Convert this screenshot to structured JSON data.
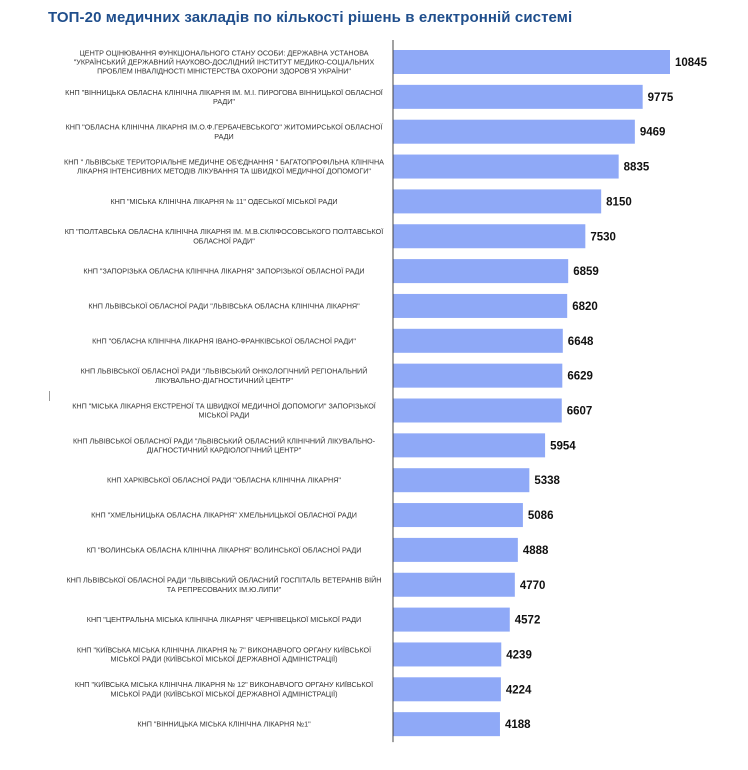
{
  "chart_data": {
    "type": "bar",
    "orientation": "horizontal",
    "title": "ТОП-20 медичних закладів по кількості рішень в електронній системі",
    "xlabel": "",
    "ylabel": "",
    "xlim": [
      0,
      10845
    ],
    "grid": false,
    "colors": {
      "bar": "#8fa9f7",
      "title": "#1f4e8c",
      "axis": "#444444"
    },
    "categories": [
      [
        "ЦЕНТР ОЦІНЮВАННЯ ФУНКЦІОНАЛЬНОГО СТАНУ ОСОБИ: ДЕРЖАВНА УСТАНОВА",
        "\"УКРАЇНСЬКИЙ ДЕРЖАВНИЙ НАУКОВО-ДОСЛІДНИЙ ІНСТИТУТ МЕДИКО-СОЦІАЛЬНИХ",
        "ПРОБЛЕМ ІНВАЛІДНОСТІ МІНІСТЕРСТВА ОХОРОНИ ЗДОРОВ'Я УКРАЇНИ\""
      ],
      [
        "КНП \"ВІННИЦЬКА ОБЛАСНА КЛІНІЧНА ЛІКАРНЯ ІМ. М.І. ПИРОГОВА ВІННИЦЬКОЇ ОБЛАСНОЇ",
        "РАДИ\""
      ],
      [
        "КНП \"ОБЛАСНА КЛІНІЧНА ЛІКАРНЯ ІМ.О.Ф.ГЕРБАЧЕВСЬКОГО\" ЖИТОМИРСЬКОЇ ОБЛАСНОЇ",
        "РАДИ"
      ],
      [
        "КНП \" ЛЬВІВСЬКЕ ТЕРИТОРІАЛЬНЕ МЕДИЧНЕ ОБ'ЄДНАННЯ \" БАГАТОПРОФІЛЬНА КЛІНІЧНА",
        "ЛІКАРНЯ ІНТЕНСИВНИХ МЕТОДІВ ЛІКУВАННЯ ТА ШВИДКОЇ МЕДИЧНОЇ ДОПОМОГИ\""
      ],
      [
        "КНП \"МІСЬКА КЛІНІЧНА ЛІКАРНЯ № 11\" ОДЕСЬКОЇ МІСЬКОЇ РАДИ"
      ],
      [
        "КП \"ПОЛТАВСЬКА ОБЛАСНА КЛІНІЧНА ЛІКАРНЯ ІМ. М.В.СКЛІФОСОВСЬКОГО ПОЛТАВСЬКОЇ",
        "ОБЛАСНОЇ РАДИ\""
      ],
      [
        "КНП \"ЗАПОРІЗЬКА ОБЛАСНА КЛІНІЧНА ЛІКАРНЯ\" ЗАПОРІЗЬКОЇ ОБЛАСНОЇ РАДИ"
      ],
      [
        "КНП ЛЬВІВСЬКОЇ ОБЛАСНОЇ РАДИ \"ЛЬВІВСЬКА ОБЛАСНА КЛІНІЧНА ЛІКАРНЯ\""
      ],
      [
        "КНП \"ОБЛАСНА КЛІНІЧНА ЛІКАРНЯ ІВАНО-ФРАНКІВСЬКОЇ ОБЛАСНОЇ РАДИ\""
      ],
      [
        "КНП ЛЬВІВСЬКОЇ ОБЛАСНОЇ РАДИ \"ЛЬВІВСЬКИЙ ОНКОЛОГІЧНИЙ РЕГІОНАЛЬНИЙ",
        "ЛІКУВАЛЬНО-ДІАГНОСТИЧНИЙ ЦЕНТР\""
      ],
      [
        "КНП \"МІСЬКА ЛІКАРНЯ ЕКСТРЕНОЇ ТА ШВИДКОЇ МЕДИЧНОЇ ДОПОМОГИ\" ЗАПОРІЗЬКОЇ",
        "МІСЬКОЇ РАДИ"
      ],
      [
        "КНП ЛЬВІВСЬКОЇ ОБЛАСНОЇ РАДИ \"ЛЬВІВСЬКИЙ ОБЛАСНИЙ  КЛІНІЧНИЙ ЛІКУВАЛЬНО-",
        "ДІАГНОСТИЧНИЙ КАРДІОЛОГІЧНИЙ ЦЕНТР\""
      ],
      [
        "КНП ХАРКІВСЬКОЇ ОБЛАСНОЇ РАДИ \"ОБЛАСНА КЛІНІЧНА ЛІКАРНЯ\""
      ],
      [
        "КНП \"ХМЕЛЬНИЦЬКА ОБЛАСНА ЛІКАРНЯ\" ХМЕЛЬНИЦЬКОЇ ОБЛАСНОЇ РАДИ"
      ],
      [
        "КП \"ВОЛИНСЬКА ОБЛАСНА КЛІНІЧНА ЛІКАРНЯ\" ВОЛИНСЬКОЇ ОБЛАСНОЇ РАДИ"
      ],
      [
        "КНП ЛЬВІВСЬКОЇ ОБЛАСНОЇ РАДИ \"ЛЬВІВСЬКИЙ ОБЛАСНИЙ ГОСПІТАЛЬ ВЕТЕРАНІВ ВІЙН",
        "ТА РЕПРЕСОВАНИХ ІМ.Ю.ЛИПИ\""
      ],
      [
        "КНП \"ЦЕНТРАЛЬНА МІСЬКА КЛІНІЧНА ЛІКАРНЯ\" ЧЕРНІВЕЦЬКОЇ МІСЬКОЇ РАДИ"
      ],
      [
        "КНП \"КИЇВСЬКА МІСЬКА КЛІНІЧНА ЛІКАРНЯ № 7\" ВИКОНАВЧОГО ОРГАНУ КИЇВСЬКОЇ",
        "МІСЬКОЇ РАДИ (КИЇВСЬКОЇ МІСЬКОЇ ДЕРЖАВНОЇ АДМІНІСТРАЦІЇ)"
      ],
      [
        "КНП \"КИЇВСЬКА МІСЬКА КЛІНІЧНА ЛІКАРНЯ № 12\" ВИКОНАВЧОГО ОРГАНУ КИЇВСЬКОЇ",
        "МІСЬКОЇ РАДИ (КИЇВСЬКОЇ МІСЬКОЇ ДЕРЖАВНОЇ АДМІНІСТРАЦІЇ)"
      ],
      [
        "КНП \"ВІННИЦЬКА МІСЬКА КЛІНІЧНА ЛІКАРНЯ №1\""
      ]
    ],
    "values": [
      10845,
      9775,
      9469,
      8835,
      8150,
      7530,
      6859,
      6820,
      6648,
      6629,
      6607,
      5954,
      5338,
      5086,
      4888,
      4770,
      4572,
      4239,
      4224,
      4188
    ]
  }
}
